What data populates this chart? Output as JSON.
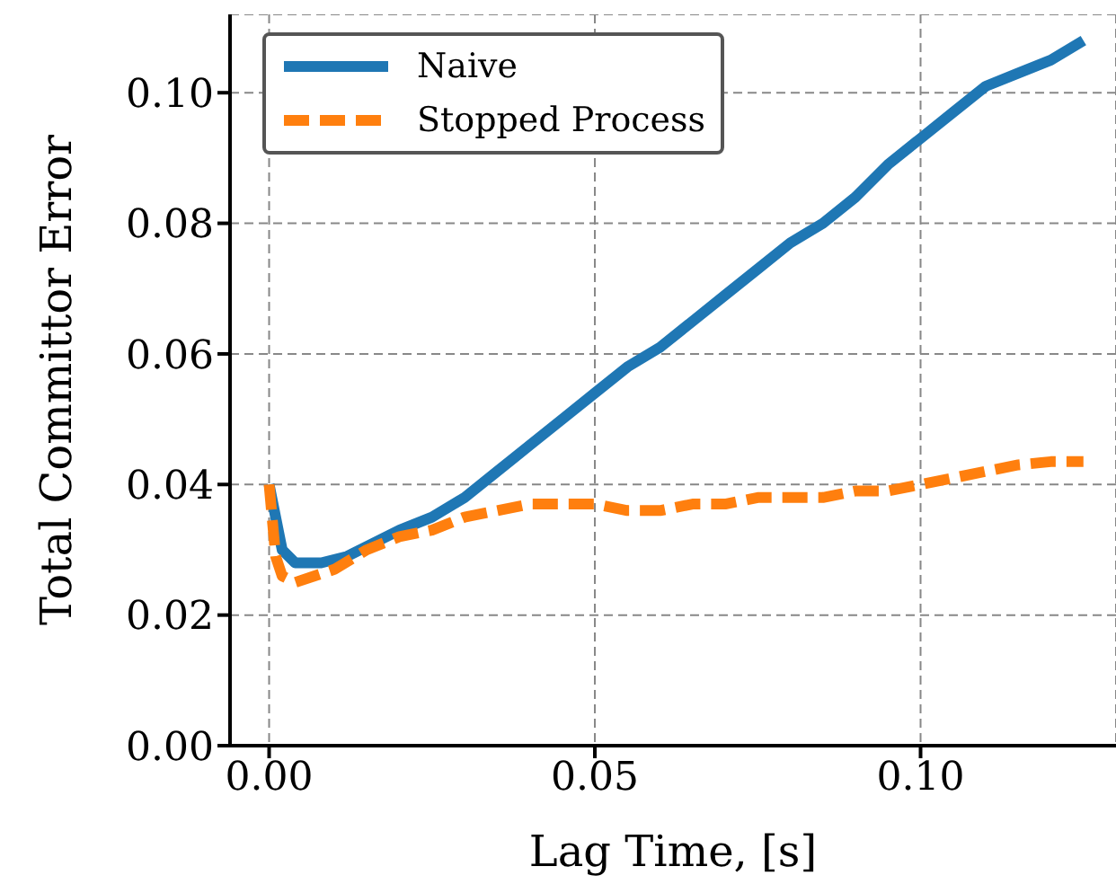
{
  "chart_data": {
    "type": "line",
    "xlabel": "Lag Time,  [s]",
    "ylabel": "Total Committor Error",
    "xlim": [
      -0.006,
      0.13
    ],
    "xticks": [
      {
        "value": 0,
        "label": "0.00"
      },
      0.05,
      {
        "value": 0.1,
        "label": "0.10"
      }
    ],
    "ylim": [
      0,
      0.112
    ],
    "yticks": [
      {
        "value": 0,
        "label": "0.00"
      },
      0.02,
      0.04,
      0.06,
      0.08,
      {
        "value": 0.1,
        "label": "0.10"
      }
    ],
    "grid": true,
    "legend": "top left",
    "marker": "none",
    "series": [
      {
        "name": "Naive",
        "color": "#1f77b4",
        "line_style": "solid",
        "x": [
          0,
          0.002,
          0.004,
          0.008,
          0.012,
          0.016,
          0.02,
          0.025,
          0.03,
          0.035,
          0.04,
          0.045,
          0.05,
          0.055,
          0.06,
          0.065,
          0.07,
          0.075,
          0.08,
          0.085,
          0.09,
          0.095,
          0.1,
          0.105,
          0.11,
          0.115,
          0.12,
          0.125
        ],
        "values": [
          0.04,
          0.03,
          0.028,
          0.028,
          0.029,
          0.031,
          0.033,
          0.035,
          0.038,
          0.042,
          0.046,
          0.05,
          0.054,
          0.058,
          0.061,
          0.065,
          0.069,
          0.073,
          0.077,
          0.08,
          0.084,
          0.089,
          0.093,
          0.097,
          0.101,
          0.103,
          0.105,
          0.108
        ]
      },
      {
        "name": "Stopped Process",
        "color": "#ff7f0e",
        "line_style": "dashed",
        "x": [
          0,
          0.001,
          0.002,
          0.004,
          0.007,
          0.01,
          0.015,
          0.02,
          0.025,
          0.03,
          0.035,
          0.04,
          0.045,
          0.05,
          0.055,
          0.06,
          0.065,
          0.07,
          0.075,
          0.08,
          0.085,
          0.09,
          0.095,
          0.1,
          0.105,
          0.11,
          0.115,
          0.12,
          0.125
        ],
        "values": [
          0.04,
          0.029,
          0.026,
          0.025,
          0.026,
          0.027,
          0.03,
          0.032,
          0.033,
          0.035,
          0.036,
          0.037,
          0.037,
          0.037,
          0.036,
          0.036,
          0.037,
          0.037,
          0.038,
          0.038,
          0.038,
          0.039,
          0.039,
          0.04,
          0.041,
          0.042,
          0.043,
          0.0435,
          0.0435
        ]
      }
    ]
  }
}
